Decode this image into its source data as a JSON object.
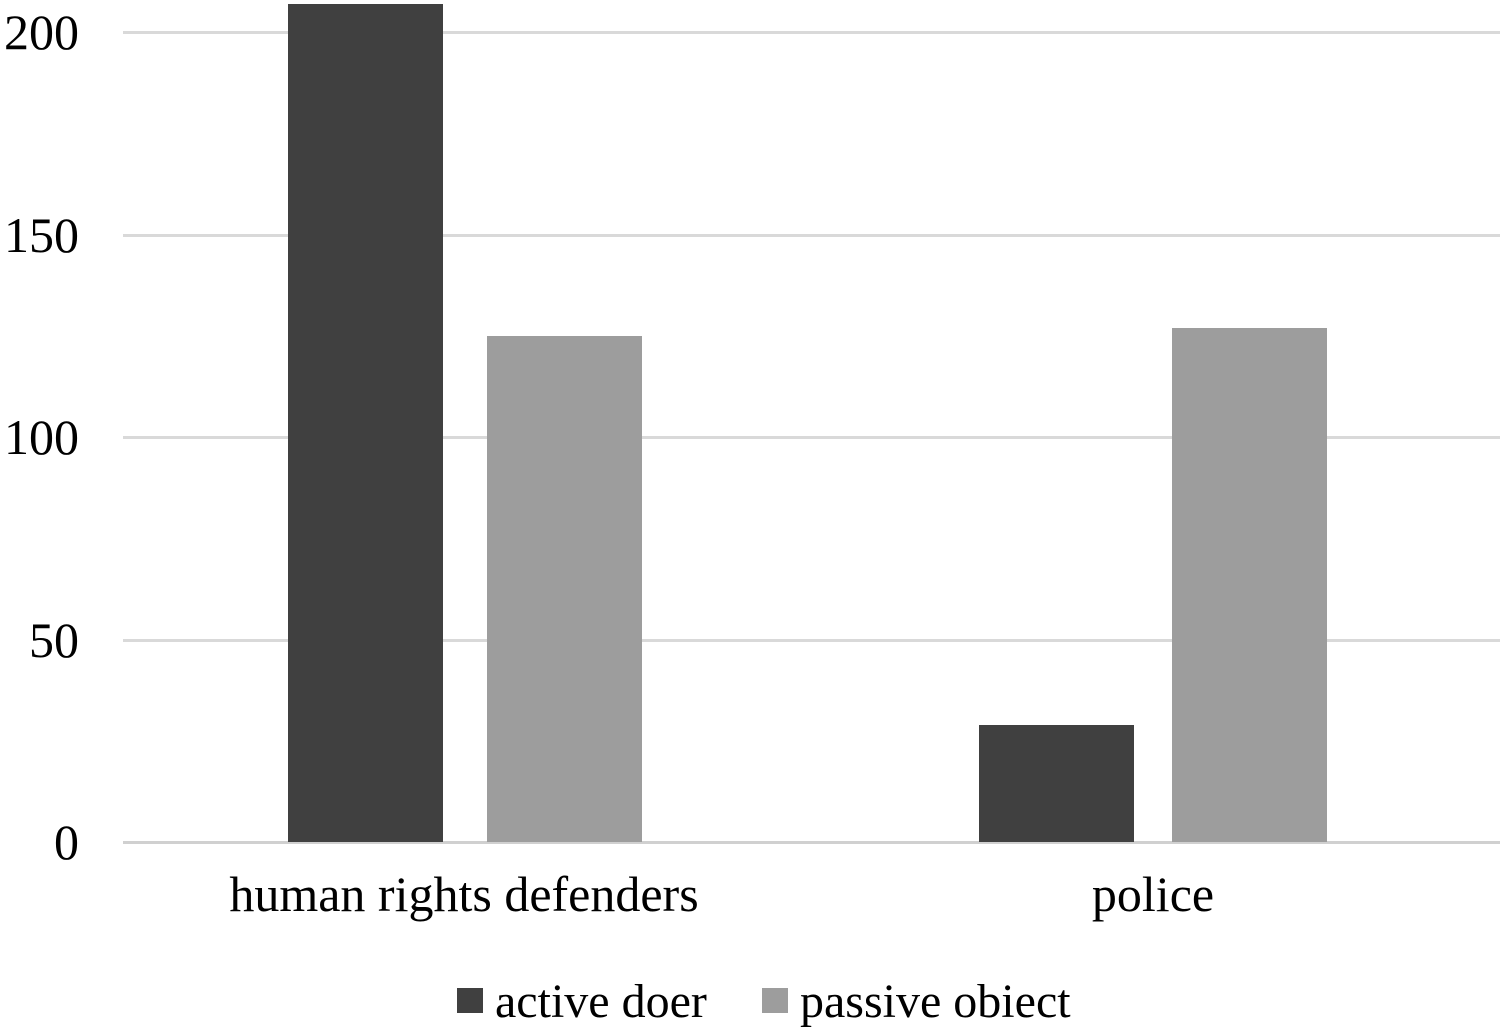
{
  "chart_data": {
    "type": "bar",
    "categories": [
      "human rights defenders",
      "police"
    ],
    "series": [
      {
        "name": "active doer",
        "color": "#404040",
        "values": [
          207,
          29
        ]
      },
      {
        "name": "passive obiect",
        "color": "#9d9d9d",
        "values": [
          125,
          127
        ]
      }
    ],
    "title": "",
    "xlabel": "",
    "ylabel": "",
    "ylim": [
      0,
      200
    ],
    "yticks": [
      0,
      50,
      100,
      150,
      200
    ],
    "grid": true,
    "legend_position": "bottom",
    "colors": {
      "gridline": "#d9d9d9",
      "axis_line": "#d0d0d0",
      "text": "#000000",
      "background": "#ffffff"
    }
  }
}
